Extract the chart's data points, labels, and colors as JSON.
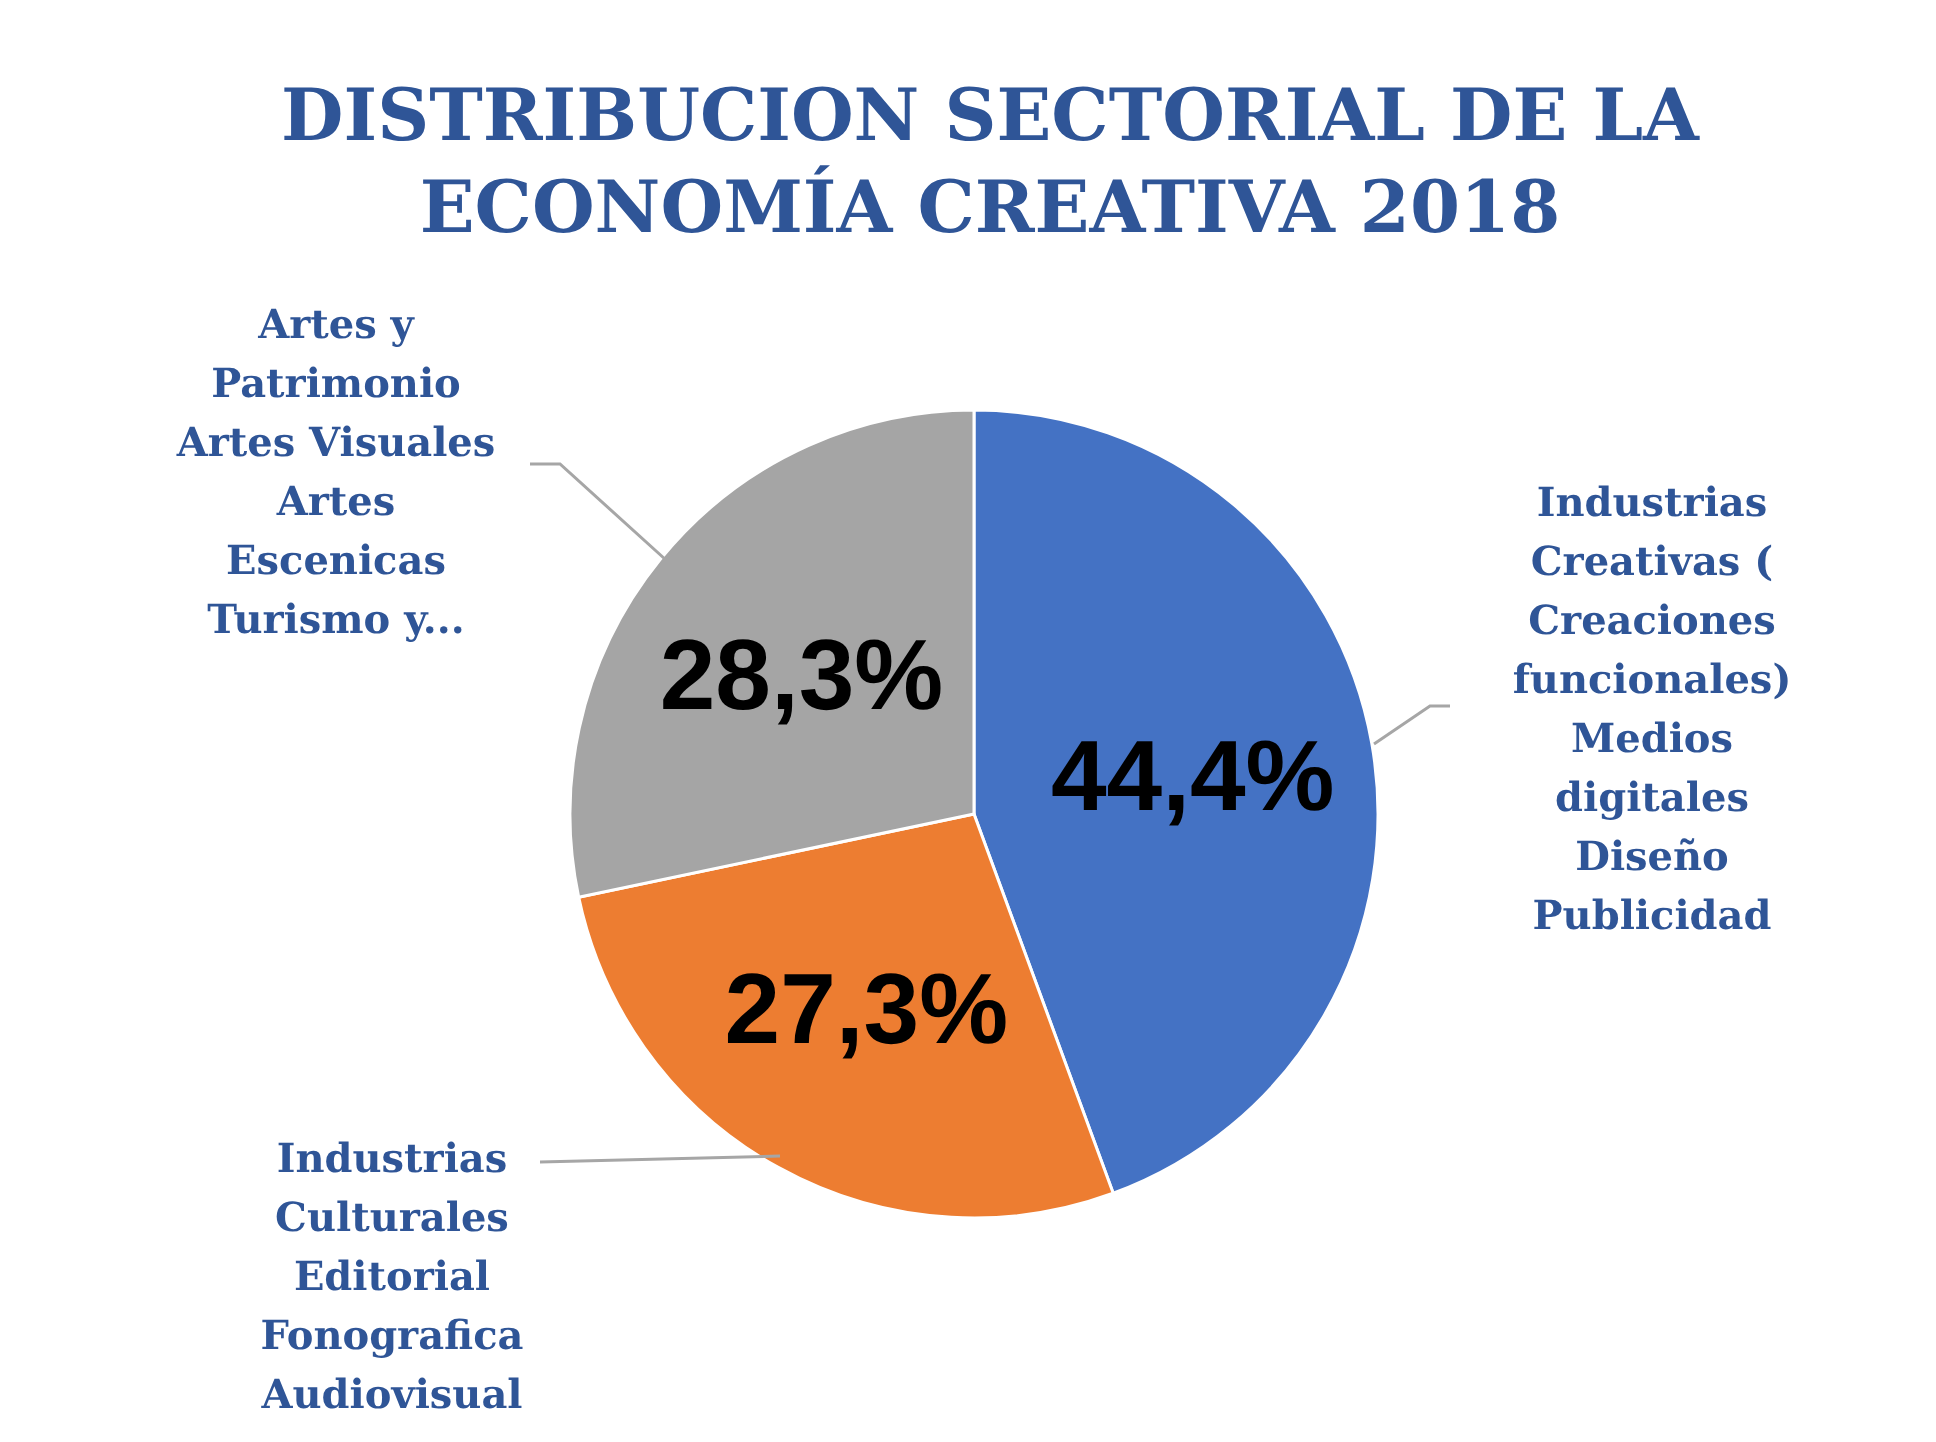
{
  "chart_data": {
    "type": "pie",
    "title": "DISTRIBUCION SECTORIAL DE LA\nECONOMÍA CREATIVA 2018",
    "categories": [
      "Industrias\nCreativas (\nCreaciones\nfuncionales)\nMedios\ndigitales\nDiseño\nPublicidad",
      "Industrias\nCulturales\nEditorial\nFonografica\nAudiovisual",
      "Artes y\nPatrimonio\nArtes Visuales\nArtes\nEscenicas\nTurismo y..."
    ],
    "values": [
      44.4,
      27.3,
      28.3
    ],
    "colors": [
      "#4472c4",
      "#ed7d31",
      "#a5a5a5"
    ],
    "value_labels": [
      "44,4%",
      "27,3%",
      "28,3%"
    ]
  }
}
